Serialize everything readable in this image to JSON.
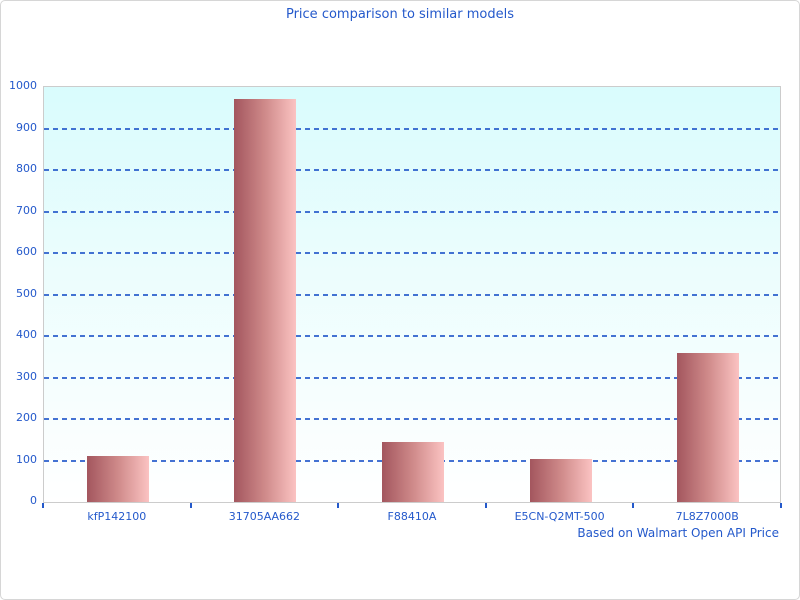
{
  "chart_data": {
    "type": "bar",
    "title": "Price comparison to similar models",
    "note": "Based on Walmart Open API Price",
    "categories": [
      "kfP142100",
      "31705AA662",
      "F88410A",
      "E5CN-Q2MT-500",
      "7L8Z7000B"
    ],
    "values": [
      110,
      970,
      145,
      103,
      360
    ],
    "xlabel": "",
    "ylabel": "",
    "ylim": [
      0,
      1000
    ],
    "yticks": [
      0,
      100,
      200,
      300,
      400,
      500,
      600,
      700,
      800,
      900,
      1000
    ],
    "gridline_values": [
      100,
      200,
      300,
      400,
      500,
      600,
      700,
      800,
      900
    ],
    "grid_style": "dashed-horizontal",
    "legend_position": "none",
    "colors": {
      "text_blue": "#2459cb",
      "gridline_blue": "#2f5fc9",
      "bar_gradient_left": "#a3565e",
      "bar_gradient_mid": "#cf8a8a",
      "bar_gradient_right": "#fbc3c2",
      "plot_bg_top": "#d9fcfd",
      "plot_bg_bottom": "#ffffff",
      "plot_border": "#cccccc",
      "window_border": "#d6d6d6"
    }
  }
}
